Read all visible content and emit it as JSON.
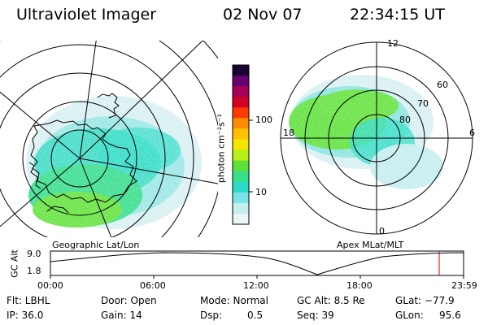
{
  "header": {
    "instrument": "Ultraviolet Imager",
    "date": "02 Nov 07",
    "time": "22:34:15 UT"
  },
  "panels": {
    "left_label": "Geographic Lat/Lon",
    "right_label": "Apex MLat/MLT"
  },
  "colorbar": {
    "unit_label": "photon cm⁻²s⁻¹",
    "ticks": [
      "100",
      "10"
    ],
    "tick_values": [
      100,
      10
    ],
    "scale": "log",
    "colors": [
      "#1a0033",
      "#6a0070",
      "#a8005a",
      "#d40025",
      "#ff3a00",
      "#ff8c00",
      "#ffc000",
      "#f2e600",
      "#b6ef1a",
      "#5ee23a",
      "#36df8a",
      "#2bdcc6",
      "#7ae3e6",
      "#c4eef0",
      "#e9f6f7"
    ]
  },
  "polar_plot": {
    "mlt_labels": [
      "12",
      "18",
      "6",
      "0"
    ],
    "mlat_labels": [
      "60",
      "70",
      "80"
    ]
  },
  "altitude_plot": {
    "ylabel": "GC Alt",
    "yticks": [
      "9.0",
      "1.8"
    ],
    "xticks": [
      "00:00",
      "06:00",
      "12:00",
      "18:00",
      "23:59"
    ],
    "current_time_marker": "22:34",
    "marker_color": "#cc0000"
  },
  "footer": {
    "flt": "Flt: LBHL",
    "ip": "IP: 36.0",
    "door": "Door: Open",
    "gain": "Gain: 14",
    "mode": "Mode: Normal",
    "dsp": "Dsp:",
    "dsp_value": "0.5",
    "gc_alt": "GC Alt: 8.5 Re",
    "seq": "Seq: 39",
    "glat": "GLat: −77.9",
    "glon": "GLon:",
    "glon_value": "95.6"
  }
}
